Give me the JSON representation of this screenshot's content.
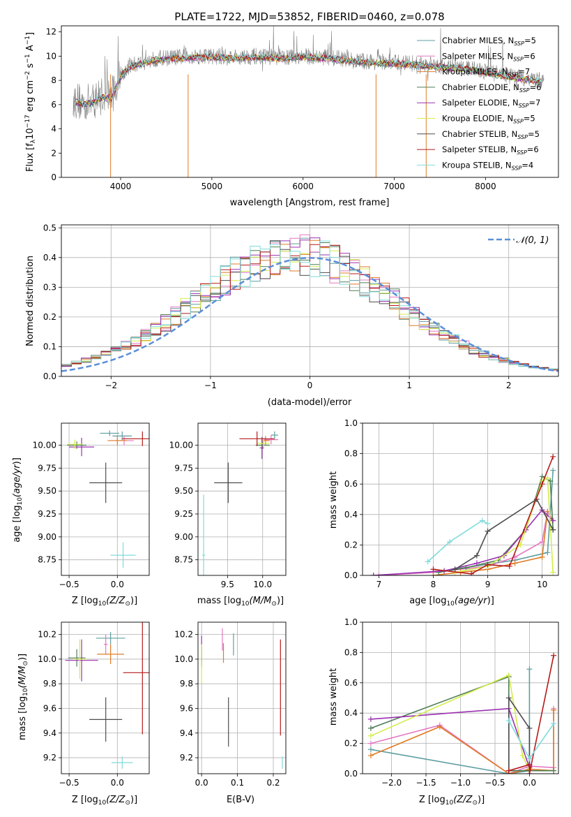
{
  "title": "PLATE=1722, MJD=53852, FIBERID=0460, z=0.078",
  "series_styles": [
    {
      "label": "Chabrier MILES, N_SSP=5",
      "color": "#5f9ea0"
    },
    {
      "label": "Salpeter MILES, N_SSP=6",
      "color": "#e377c2"
    },
    {
      "label": "Kroupa MILES, N_SSP=7",
      "color": "#e07b24"
    },
    {
      "label": "Chabrier ELODIE, N_SSP=6",
      "color": "#4e7d55"
    },
    {
      "label": "Salpeter ELODIE, N_SSP=7",
      "color": "#9b30b0"
    },
    {
      "label": "Kroupa ELODIE, N_SSP=5",
      "color": "#d4ec4a"
    },
    {
      "label": "Chabrier STELIB, N_SSP=5",
      "color": "#4d4d4d"
    },
    {
      "label": "Salpeter STELIB, N_SSP=6",
      "color": "#b51a1a"
    },
    {
      "label": "Kroupa STELIB, N_SSP=4",
      "color": "#7fdbdb"
    }
  ],
  "chart_data": [
    {
      "id": "spectrum",
      "type": "line",
      "title": "PLATE=1722, MJD=53852, FIBERID=0460, z=0.078",
      "xlabel": "wavelength [Angstrom, rest frame]",
      "ylabel": "Flux [f_λ 10^-17 erg cm^-2 s^-1 A^-1]",
      "xlim": [
        3350,
        8800
      ],
      "ylim": [
        0,
        12.5
      ],
      "xticks": [
        4000,
        5000,
        6000,
        7000,
        8000
      ],
      "yticks": [
        0,
        2,
        4,
        6,
        8,
        10,
        12
      ],
      "grid": false,
      "legend_position": "top-right",
      "legend": [
        "Chabrier MILES, N_SSP=5",
        "Salpeter MILES, N_SSP=6",
        "Kroupa MILES, N_SSP=7",
        "Chabrier ELODIE, N_SSP=6",
        "Salpeter ELODIE, N_SSP=7",
        "Kroupa ELODIE, N_SSP=5",
        "Chabrier STELIB, N_SSP=5",
        "Salpeter STELIB, N_SSP=6",
        "Kroupa STELIB, N_SSP=4"
      ],
      "data_envelope": {
        "x": [
          3500,
          3600,
          3700,
          3800,
          3900,
          4000,
          4100,
          4200,
          4400,
          4600,
          4800,
          5000,
          5200,
          5500,
          5800,
          6000,
          6300,
          6600,
          6900,
          7200,
          7500,
          7800,
          8100,
          8400,
          8600
        ],
        "y": [
          6.4,
          6.1,
          6.3,
          6.8,
          6.7,
          8.4,
          9.2,
          9.4,
          9.8,
          9.9,
          10.0,
          10.0,
          9.9,
          10.0,
          9.9,
          10.0,
          9.9,
          9.6,
          9.5,
          9.4,
          9.2,
          9.0,
          8.6,
          8.2,
          8.0
        ]
      },
      "model_continuum": {
        "x": [
          3500,
          3600,
          3700,
          3800,
          3900,
          4000,
          4100,
          4200,
          4400,
          4600,
          4800,
          5000,
          5200,
          5500,
          5800,
          6000,
          6300,
          6600,
          6900,
          7200,
          7500,
          7800,
          8100,
          8400,
          8600
        ],
        "y": [
          6.2,
          6.0,
          6.2,
          6.6,
          6.5,
          8.3,
          9.1,
          9.3,
          9.7,
          9.8,
          9.9,
          9.9,
          9.8,
          9.9,
          9.8,
          9.9,
          9.8,
          9.5,
          9.4,
          9.3,
          9.1,
          8.9,
          8.5,
          8.1,
          7.9
        ]
      },
      "masked_line_wavelengths": [
        3890,
        4740,
        6800,
        7350
      ]
    },
    {
      "id": "residual_hist",
      "type": "histogram",
      "xlabel": "(data-model)/error",
      "ylabel": "Normed distribution",
      "xlim": [
        -2.5,
        2.5
      ],
      "ylim": [
        0,
        0.51
      ],
      "xticks": [
        -2,
        -1,
        0,
        1,
        2
      ],
      "yticks": [
        0.0,
        0.1,
        0.2,
        0.3,
        0.4,
        0.5
      ],
      "grid": true,
      "legend_position": "top-right",
      "legend": [
        "N(0,1)"
      ],
      "bin_width": 0.1,
      "reference_curve": "standard normal pdf"
    },
    {
      "id": "age_vs_Z",
      "type": "errorbar",
      "xlabel": "Z [log10(Z/Z_sun)]",
      "ylabel": "age [log10(age/yr)]",
      "xlim": [
        -0.58,
        0.33
      ],
      "ylim": [
        8.58,
        10.24
      ],
      "xticks": [
        -0.5,
        0.0
      ],
      "yticks": [
        8.75,
        9.0,
        9.25,
        9.5,
        9.75,
        10.0
      ],
      "grid": true,
      "points": [
        {
          "series": 0,
          "x": 0.05,
          "y": 10.1,
          "xerr": 0.1,
          "yerr": 0.05
        },
        {
          "series": 1,
          "x": 0.07,
          "y": 10.05,
          "xerr": 0.1,
          "yerr": 0.05
        },
        {
          "series": 2,
          "x": 0.0,
          "y": 10.05,
          "xerr": 0.1,
          "yerr": 0.05
        },
        {
          "series": 3,
          "x": -0.42,
          "y": 10.0,
          "xerr": 0.1,
          "yerr": 0.04
        },
        {
          "series": 4,
          "x": -0.37,
          "y": 9.98,
          "xerr": 0.13,
          "yerr": 0.1
        },
        {
          "series": 5,
          "x": -0.44,
          "y": 10.01,
          "xerr": 0.08,
          "yerr": 0.05
        },
        {
          "series": 6,
          "x": -0.12,
          "y": 9.59,
          "xerr": 0.17,
          "yerr": 0.22
        },
        {
          "series": 7,
          "x": 0.26,
          "y": 10.07,
          "xerr": 0.21,
          "yerr": 0.08
        },
        {
          "series": 8,
          "x": 0.06,
          "y": 8.8,
          "xerr": 0.13,
          "yerr": 0.14
        },
        {
          "series": 0,
          "x": -0.08,
          "y": 10.13,
          "xerr": 0.1,
          "yerr": 0.03
        }
      ]
    },
    {
      "id": "age_vs_mass",
      "type": "errorbar",
      "xlabel": "mass [log10(M/M_sun)]",
      "ylabel": "",
      "xlim": [
        9.08,
        10.33
      ],
      "ylim": [
        8.58,
        10.24
      ],
      "xticks": [
        9.5,
        10.0
      ],
      "yticks": [
        8.75,
        9.0,
        9.25,
        9.5,
        9.75,
        10.0
      ],
      "grid": true,
      "points": [
        {
          "series": 0,
          "x": 10.17,
          "y": 10.11,
          "xerr": 0.05,
          "yerr": 0.04
        },
        {
          "series": 1,
          "x": 10.12,
          "y": 10.06,
          "xerr": 0.1,
          "yerr": 0.05
        },
        {
          "series": 2,
          "x": 10.04,
          "y": 10.05,
          "xerr": 0.06,
          "yerr": 0.05
        },
        {
          "series": 3,
          "x": 10.0,
          "y": 10.0,
          "xerr": 0.1,
          "yerr": 0.04
        },
        {
          "series": 4,
          "x": 9.99,
          "y": 9.97,
          "xerr": 0.03,
          "yerr": 0.12
        },
        {
          "series": 5,
          "x": 10.01,
          "y": 10.02,
          "xerr": 0.09,
          "yerr": 0.05
        },
        {
          "series": 6,
          "x": 9.51,
          "y": 9.59,
          "xerr": 0.2,
          "yerr": 0.22
        },
        {
          "series": 7,
          "x": 9.92,
          "y": 10.07,
          "xerr": 0.25,
          "yerr": 0.08
        },
        {
          "series": 8,
          "x": 9.16,
          "y": 8.8,
          "xerr": 0.02,
          "yerr": 0.66
        }
      ]
    },
    {
      "id": "weight_vs_age",
      "type": "line",
      "xlabel": "age [log10(age/yr)]",
      "ylabel": "mass weight",
      "xlim": [
        6.7,
        10.3
      ],
      "ylim": [
        0,
        1.0
      ],
      "xticks": [
        7,
        8,
        9,
        10
      ],
      "yticks": [
        0.0,
        0.2,
        0.4,
        0.6,
        0.8,
        1.0
      ],
      "grid": true,
      "series": [
        {
          "series": 0,
          "x": [
            6.9,
            8.0,
            9.5,
            10.1,
            10.2
          ],
          "y": [
            0.0,
            0.02,
            0.1,
            0.15,
            0.69
          ]
        },
        {
          "series": 1,
          "x": [
            7.0,
            8.0,
            9.0,
            9.5,
            10.0,
            10.1,
            10.2
          ],
          "y": [
            0.0,
            0.02,
            0.06,
            0.12,
            0.22,
            0.42,
            0.36
          ]
        },
        {
          "series": 2,
          "x": [
            8.0,
            8.5,
            9.0,
            9.5,
            10.0,
            10.1
          ],
          "y": [
            0.0,
            0.02,
            0.04,
            0.08,
            0.12,
            0.42
          ]
        },
        {
          "series": 3,
          "x": [
            8.1,
            8.6,
            9.2,
            9.7,
            10.0,
            10.15,
            10.2
          ],
          "y": [
            0.02,
            0.05,
            0.1,
            0.3,
            0.65,
            0.62,
            0.3
          ]
        },
        {
          "series": 4,
          "x": [
            6.9,
            8.2,
            8.8,
            9.3,
            9.7,
            10.0,
            10.2
          ],
          "y": [
            0.0,
            0.03,
            0.08,
            0.13,
            0.3,
            0.43,
            0.36
          ]
        },
        {
          "series": 5,
          "x": [
            8.4,
            9.0,
            9.6,
            10.0,
            10.1,
            10.2
          ],
          "y": [
            0.02,
            0.06,
            0.2,
            0.62,
            0.64,
            0.02
          ]
        },
        {
          "series": 6,
          "x": [
            8.4,
            8.8,
            9.0,
            9.9,
            10.2
          ],
          "y": [
            0.04,
            0.13,
            0.29,
            0.5,
            0.3
          ]
        },
        {
          "series": 7,
          "x": [
            8.0,
            8.7,
            9.0,
            9.4,
            10.0,
            10.2
          ],
          "y": [
            0.04,
            0.01,
            0.07,
            0.06,
            0.6,
            0.78
          ]
        },
        {
          "series": 8,
          "x": [
            7.9,
            8.3,
            8.9,
            9.0
          ],
          "y": [
            0.09,
            0.22,
            0.36,
            0.34
          ]
        }
      ]
    },
    {
      "id": "mass_vs_Z",
      "type": "errorbar",
      "xlabel": "Z [log10(Z/Z_sun)]",
      "ylabel": "mass [log10(M/M_sun)]",
      "xlim": [
        -0.58,
        0.33
      ],
      "ylim": [
        9.07,
        10.3
      ],
      "xticks": [
        -0.5,
        0.0
      ],
      "yticks": [
        9.2,
        9.4,
        9.6,
        9.8,
        10.0,
        10.2
      ],
      "grid": true,
      "points": [
        {
          "series": 0,
          "x": -0.07,
          "y": 10.17,
          "xerr": 0.15,
          "yerr": 0.05
        },
        {
          "series": 1,
          "x": -0.12,
          "y": 10.12,
          "xerr": 0.02,
          "yerr": 0.08
        },
        {
          "series": 2,
          "x": -0.07,
          "y": 10.04,
          "xerr": 0.14,
          "yerr": 0.08
        },
        {
          "series": 3,
          "x": -0.42,
          "y": 10.01,
          "xerr": 0.09,
          "yerr": 0.07
        },
        {
          "series": 4,
          "x": -0.37,
          "y": 9.99,
          "xerr": 0.17,
          "yerr": 0.17
        },
        {
          "series": 5,
          "x": -0.39,
          "y": 10.0,
          "xerr": 0.07,
          "yerr": 0.16
        },
        {
          "series": 6,
          "x": -0.12,
          "y": 9.51,
          "xerr": 0.17,
          "yerr": 0.18
        },
        {
          "series": 7,
          "x": 0.26,
          "y": 9.89,
          "xerr": 0.2,
          "yerr": 0.5
        },
        {
          "series": 8,
          "x": 0.05,
          "y": 9.16,
          "xerr": 0.11,
          "yerr": 0.05
        }
      ]
    },
    {
      "id": "mass_vs_EBV",
      "type": "errorbar",
      "xlabel": "E(B-V)",
      "ylabel": "",
      "xlim": [
        -0.01,
        0.235
      ],
      "ylim": [
        9.07,
        10.3
      ],
      "xticks": [
        0.0,
        0.1,
        0.2
      ],
      "yticks": [
        9.2,
        9.4,
        9.6,
        9.8,
        10.0,
        10.2
      ],
      "grid": true,
      "points": [
        {
          "series": 0,
          "x": 0.089,
          "y": 10.12,
          "xerr": 0.0,
          "yerr": 0.09
        },
        {
          "series": 1,
          "x": 0.058,
          "y": 10.16,
          "xerr": 0.0,
          "yerr": 0.09
        },
        {
          "series": 2,
          "x": 0.061,
          "y": 10.05,
          "xerr": 0.0,
          "yerr": 0.08
        },
        {
          "series": 3,
          "x": 0.0,
          "y": 10.02,
          "xerr": 0.0,
          "yerr": 0.08
        },
        {
          "series": 4,
          "x": 0.0,
          "y": 10.07,
          "xerr": 0.0,
          "yerr": 0.12
        },
        {
          "series": 5,
          "x": 0.0,
          "y": 9.96,
          "xerr": 0.0,
          "yerr": 0.16
        },
        {
          "series": 6,
          "x": 0.075,
          "y": 9.49,
          "xerr": 0.0,
          "yerr": 0.2
        },
        {
          "series": 7,
          "x": 0.22,
          "y": 9.77,
          "xerr": 0.0,
          "yerr": 0.39
        },
        {
          "series": 8,
          "x": 0.225,
          "y": 9.16,
          "xerr": 0.0,
          "yerr": 0.05
        }
      ]
    },
    {
      "id": "weight_vs_Z",
      "type": "line",
      "xlabel": "Z [log10(Z/Z_sun)]",
      "ylabel": "mass weight",
      "xlim": [
        -2.42,
        0.42
      ],
      "ylim": [
        0,
        1.0
      ],
      "xticks": [
        -2.0,
        -1.5,
        -1.0,
        -0.5,
        0.0
      ],
      "yticks": [
        0.0,
        0.2,
        0.4,
        0.6,
        0.8,
        1.0
      ],
      "grid": true,
      "series": [
        {
          "series": 0,
          "x": [
            -2.3,
            -0.3,
            0.0,
            0.0,
            0.0
          ],
          "y": [
            0.16,
            0.0,
            0.02,
            0.69,
            0.1
          ]
        },
        {
          "series": 1,
          "x": [
            -2.3,
            -1.3,
            -0.3,
            0.0,
            0.35,
            0.35
          ],
          "y": [
            0.2,
            0.32,
            0.0,
            0.05,
            0.04,
            0.43
          ]
        },
        {
          "series": 2,
          "x": [
            -2.3,
            -1.3,
            -0.3,
            0.0,
            0.35,
            0.35
          ],
          "y": [
            0.12,
            0.31,
            0.0,
            0.03,
            0.02,
            0.42
          ]
        },
        {
          "series": 3,
          "x": [
            -2.3,
            -0.3,
            -0.3,
            0.0,
            0.35
          ],
          "y": [
            0.3,
            0.64,
            0.02,
            0.02,
            0.02
          ]
        },
        {
          "series": 4,
          "x": [
            -2.3,
            -0.3,
            0.0,
            0.0
          ],
          "y": [
            0.36,
            0.43,
            0.04,
            0.05
          ]
        },
        {
          "series": 5,
          "x": [
            -2.3,
            -0.3,
            -0.1,
            0.0
          ],
          "y": [
            0.25,
            0.65,
            0.12,
            0.02
          ]
        },
        {
          "series": 6,
          "x": [
            -0.3,
            -0.3,
            0.0,
            0.0
          ],
          "y": [
            0.0,
            0.5,
            0.3,
            0.02
          ]
        },
        {
          "series": 7,
          "x": [
            -0.3,
            0.0,
            0.0,
            0.35
          ],
          "y": [
            0.02,
            0.06,
            0.0,
            0.78
          ]
        },
        {
          "series": 8,
          "x": [
            -0.3,
            0.0,
            0.35
          ],
          "y": [
            0.35,
            0.1,
            0.33
          ]
        }
      ]
    }
  ],
  "labels": {
    "spec_x": "wavelength [Angstrom, rest frame]",
    "spec_y": "Flux [f",
    "spec_y_sub": "λ",
    "spec_y_rest": "10",
    "spec_y_sup1": "−17",
    "spec_y_rest2": " erg cm",
    "spec_y_sup2": "−2",
    "spec_y_rest3": " s",
    "spec_y_sup3": "−1",
    "spec_y_rest4": " A",
    "spec_y_sup4": "−1",
    "spec_y_end": "]",
    "hist_x": "(data-model)/error",
    "hist_y": "Normed distribution",
    "hist_legend": "𝒩(0, 1)",
    "age_z_x": "Z [log",
    "age_z_y": "age  [log",
    "age_mass_x": "mass [log",
    "weight_age_x": "age  [log",
    "weight_age_y": "mass weight",
    "mass_z_x": "Z [log",
    "mass_z_y": "mass [log",
    "mass_ebv_x": "E(B-V)",
    "weight_z_x": "Z [log",
    "weight_z_y": "mass weight"
  }
}
